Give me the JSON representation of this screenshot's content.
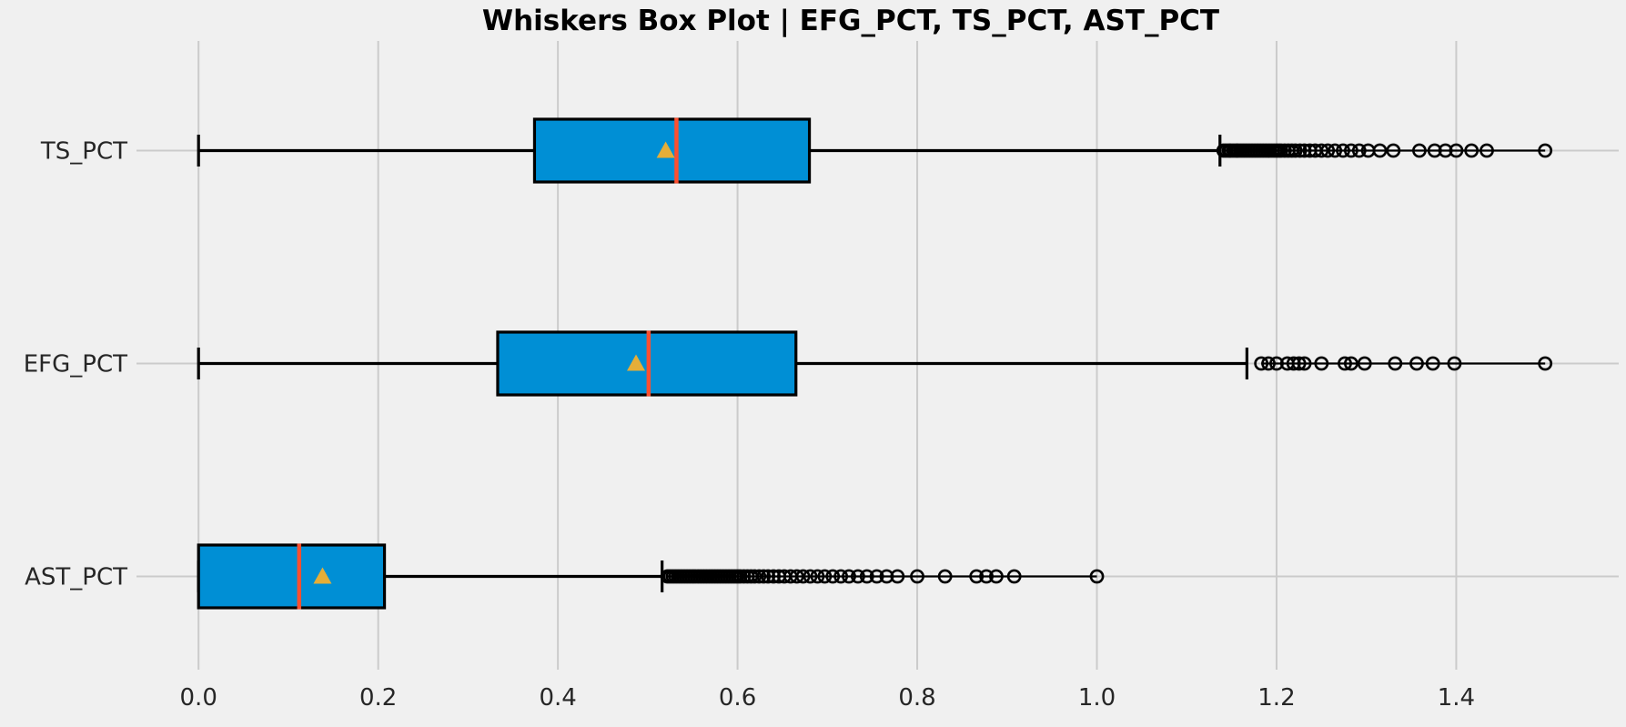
{
  "figure": {
    "title": "Whiskers Box Plot | EFG_PCT, TS_PCT, AST_PCT"
  },
  "chart_data": {
    "type": "boxplot",
    "orientation": "horizontal",
    "title": "Whiskers Box Plot | EFG_PCT, TS_PCT, AST_PCT",
    "xlabel": "",
    "ylabel": "",
    "xlim": [
      -0.07,
      1.58
    ],
    "x_ticks": [
      0.0,
      0.2,
      0.4,
      0.6,
      0.8,
      1.0,
      1.2,
      1.4
    ],
    "x_tick_labels": [
      "0.0",
      "0.2",
      "0.4",
      "0.6",
      "0.8",
      "1.0",
      "1.2",
      "1.4"
    ],
    "grid": true,
    "legend": "none",
    "categories_top_to_bottom": [
      "TS_PCT",
      "EFG_PCT",
      "AST_PCT"
    ],
    "colors": {
      "background": "#f0f0f0",
      "grid": "#cbcbcb",
      "box_fill": "#008fd5",
      "box_edge": "#000000",
      "median": "#fc4f30",
      "mean_marker": "#e5ae38",
      "whisker": "#000000",
      "outlier_edge": "#000000",
      "text": "#262626"
    },
    "series": [
      {
        "name": "TS_PCT",
        "whisker_low": 0.0,
        "q1": 0.374,
        "median": 0.532,
        "q3": 0.68,
        "whisker_high": 1.137,
        "mean": 0.52,
        "outliers": [
          1.141,
          1.144,
          1.147,
          1.149,
          1.152,
          1.155,
          1.157,
          1.16,
          1.163,
          1.166,
          1.169,
          1.172,
          1.175,
          1.178,
          1.181,
          1.184,
          1.187,
          1.19,
          1.193,
          1.196,
          1.199,
          1.202,
          1.205,
          1.209,
          1.213,
          1.217,
          1.221,
          1.226,
          1.231,
          1.237,
          1.243,
          1.25,
          1.257,
          1.265,
          1.274,
          1.283,
          1.292,
          1.302,
          1.315,
          1.33,
          1.359,
          1.376,
          1.388,
          1.4,
          1.417,
          1.434,
          1.499
        ]
      },
      {
        "name": "EFG_PCT",
        "whisker_low": 0.0,
        "q1": 0.333,
        "median": 0.501,
        "q3": 0.665,
        "whisker_high": 1.167,
        "mean": 0.487,
        "outliers": [
          1.183,
          1.191,
          1.2,
          1.212,
          1.219,
          1.225,
          1.231,
          1.25,
          1.276,
          1.283,
          1.298,
          1.332,
          1.356,
          1.374,
          1.398,
          1.499
        ]
      },
      {
        "name": "AST_PCT",
        "whisker_low": 0.0,
        "q1": 0.0,
        "median": 0.112,
        "q3": 0.207,
        "whisker_high": 0.516,
        "mean": 0.138,
        "outliers": [
          0.522,
          0.525,
          0.528,
          0.531,
          0.534,
          0.537,
          0.54,
          0.543,
          0.546,
          0.549,
          0.552,
          0.555,
          0.558,
          0.561,
          0.564,
          0.567,
          0.57,
          0.573,
          0.576,
          0.579,
          0.582,
          0.585,
          0.588,
          0.591,
          0.594,
          0.597,
          0.6,
          0.603,
          0.607,
          0.611,
          0.615,
          0.619,
          0.624,
          0.629,
          0.634,
          0.64,
          0.646,
          0.652,
          0.659,
          0.666,
          0.673,
          0.681,
          0.689,
          0.697,
          0.706,
          0.715,
          0.724,
          0.734,
          0.744,
          0.755,
          0.766,
          0.778,
          0.8,
          0.831,
          0.866,
          0.877,
          0.888,
          0.908,
          1.0
        ]
      }
    ]
  }
}
